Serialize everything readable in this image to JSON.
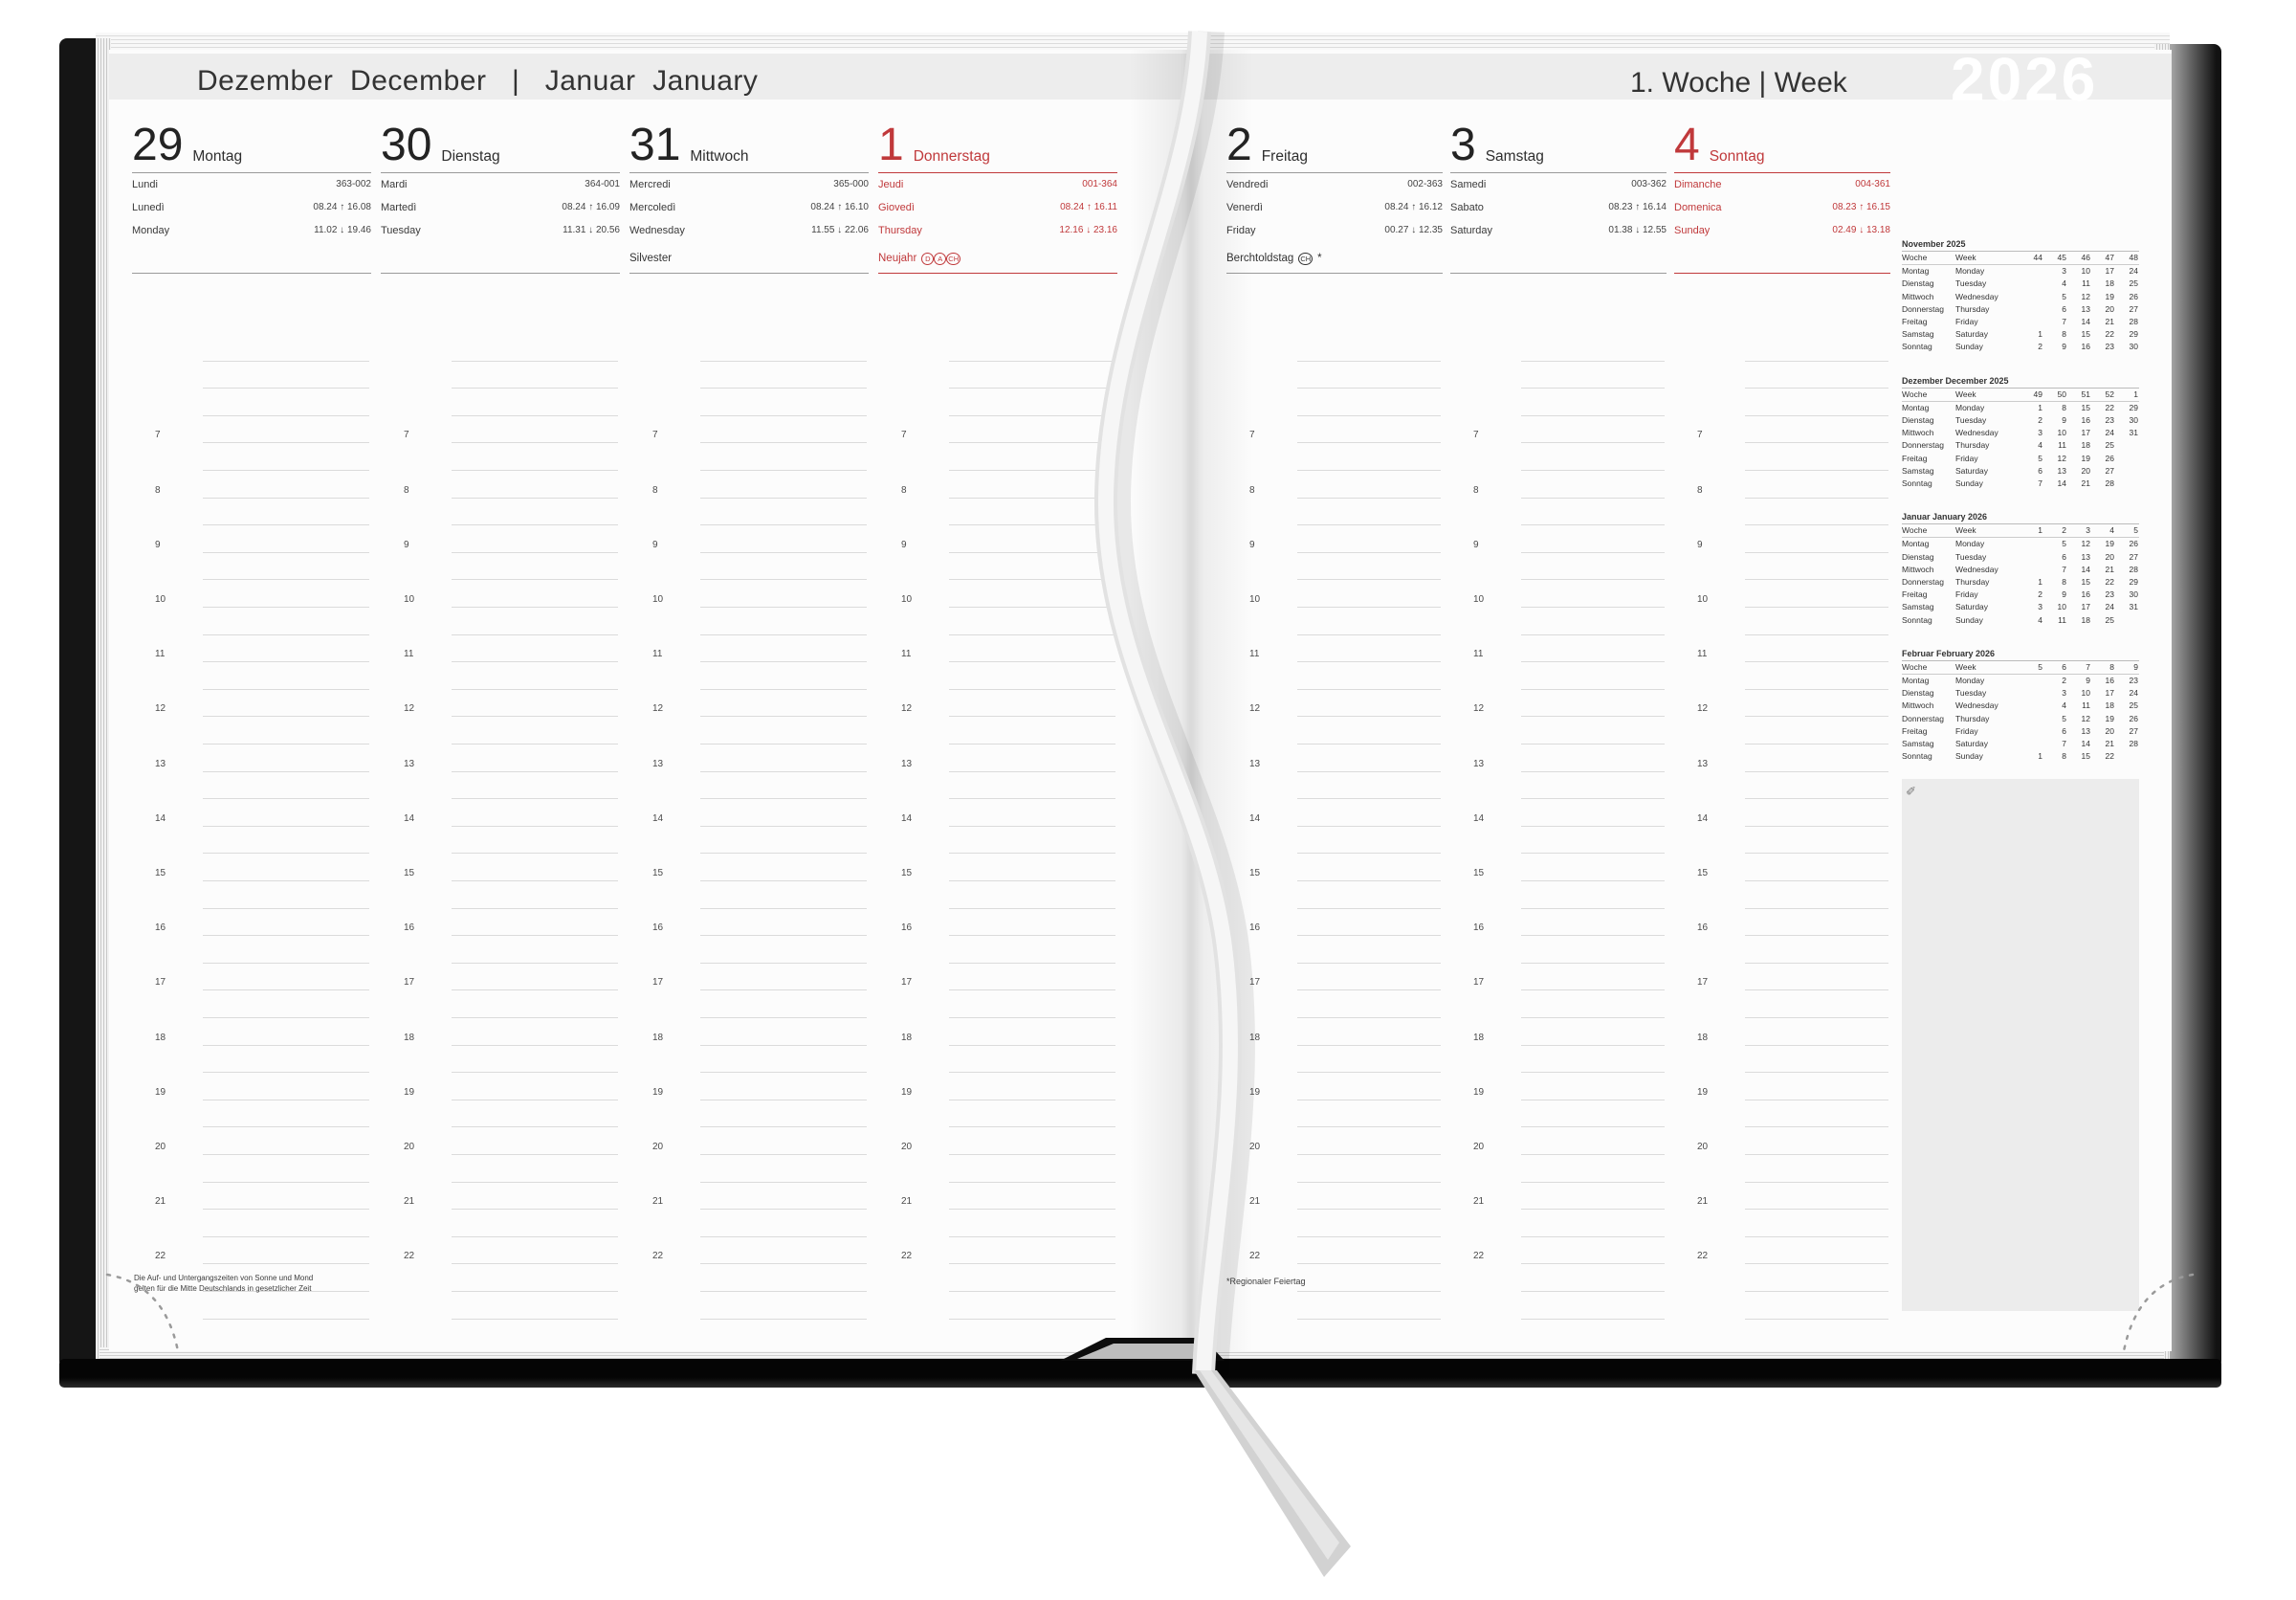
{
  "header": {
    "months": "Dezember  December   |   Januar  January",
    "week": "1. Woche | Week",
    "year": "2026"
  },
  "days": [
    {
      "num": "29",
      "name": "Montag",
      "lang1": "Lundi",
      "lang2": "Lunedì",
      "lang3": "Monday",
      "day_of_year": "363-002",
      "sun": "08.24 ↑ 16.08",
      "moon": "11.02 ↓ 19.46",
      "holiday": {
        "label": "",
        "marks": [],
        "suffix": ""
      },
      "red": false
    },
    {
      "num": "30",
      "name": "Dienstag",
      "lang1": "Mardi",
      "lang2": "Martedì",
      "lang3": "Tuesday",
      "day_of_year": "364-001",
      "sun": "08.24 ↑ 16.09",
      "moon": "11.31 ↓ 20.56",
      "holiday": {
        "label": "",
        "marks": [],
        "suffix": ""
      },
      "red": false
    },
    {
      "num": "31",
      "name": "Mittwoch",
      "lang1": "Mercredi",
      "lang2": "Mercoledì",
      "lang3": "Wednesday",
      "day_of_year": "365-000",
      "sun": "08.24 ↑ 16.10",
      "moon": "11.55 ↓ 22.06",
      "holiday": {
        "label": "Silvester",
        "marks": [],
        "suffix": ""
      },
      "red": false
    },
    {
      "num": "1",
      "name": "Donnerstag",
      "lang1": "Jeudi",
      "lang2": "Giovedì",
      "lang3": "Thursday",
      "day_of_year": "001-364",
      "sun": "08.24 ↑ 16.11",
      "moon": "12.16 ↓ 23.16",
      "holiday": {
        "label": "Neujahr",
        "marks": [
          "D",
          "A",
          "CH"
        ],
        "suffix": ""
      },
      "red": true
    },
    {
      "num": "2",
      "name": "Freitag",
      "lang1": "Vendredi",
      "lang2": "Venerdì",
      "lang3": "Friday",
      "day_of_year": "002-363",
      "sun": "08.24 ↑ 16.12",
      "moon": "00.27 ↓ 12.35",
      "holiday": {
        "label": "Berchtoldstag",
        "marks": [
          "CH"
        ],
        "suffix": "*"
      },
      "red": false
    },
    {
      "num": "3",
      "name": "Samstag",
      "lang1": "Samedi",
      "lang2": "Sabato",
      "lang3": "Saturday",
      "day_of_year": "003-362",
      "sun": "08.23 ↑ 16.14",
      "moon": "01.38 ↓ 12.55",
      "holiday": {
        "label": "",
        "marks": [],
        "suffix": ""
      },
      "red": false
    },
    {
      "num": "4",
      "name": "Sonntag",
      "lang1": "Dimanche",
      "lang2": "Domenica",
      "lang3": "Sunday",
      "day_of_year": "004-361",
      "sun": "08.23 ↑ 16.15",
      "moon": "02.49 ↓ 13.18",
      "holiday": {
        "label": "",
        "marks": [],
        "suffix": ""
      },
      "red": true
    }
  ],
  "schedule": {
    "hours": [
      "7",
      "8",
      "9",
      "10",
      "11",
      "12",
      "13",
      "14",
      "15",
      "16",
      "17",
      "18",
      "19",
      "20",
      "21",
      "22"
    ]
  },
  "mini_calendars": [
    {
      "title": "November 2025",
      "rows": [
        {
          "de": "Woche",
          "en": "Week",
          "vals": [
            "44",
            "45",
            "46",
            "47",
            "48"
          ]
        },
        {
          "de": "Montag",
          "en": "Monday",
          "vals": [
            "",
            "3",
            "10",
            "17",
            "24"
          ]
        },
        {
          "de": "Dienstag",
          "en": "Tuesday",
          "vals": [
            "",
            "4",
            "11",
            "18",
            "25"
          ]
        },
        {
          "de": "Mittwoch",
          "en": "Wednesday",
          "vals": [
            "",
            "5",
            "12",
            "19",
            "26"
          ]
        },
        {
          "de": "Donnerstag",
          "en": "Thursday",
          "vals": [
            "",
            "6",
            "13",
            "20",
            "27"
          ]
        },
        {
          "de": "Freitag",
          "en": "Friday",
          "vals": [
            "",
            "7",
            "14",
            "21",
            "28"
          ]
        },
        {
          "de": "Samstag",
          "en": "Saturday",
          "vals": [
            "1",
            "8",
            "15",
            "22",
            "29"
          ]
        },
        {
          "de": "Sonntag",
          "en": "Sunday",
          "vals": [
            "2",
            "9",
            "16",
            "23",
            "30"
          ]
        }
      ]
    },
    {
      "title": "Dezember  December 2025",
      "rows": [
        {
          "de": "Woche",
          "en": "Week",
          "vals": [
            "49",
            "50",
            "51",
            "52",
            "1"
          ]
        },
        {
          "de": "Montag",
          "en": "Monday",
          "vals": [
            "1",
            "8",
            "15",
            "22",
            "29"
          ]
        },
        {
          "de": "Dienstag",
          "en": "Tuesday",
          "vals": [
            "2",
            "9",
            "16",
            "23",
            "30"
          ]
        },
        {
          "de": "Mittwoch",
          "en": "Wednesday",
          "vals": [
            "3",
            "10",
            "17",
            "24",
            "31"
          ]
        },
        {
          "de": "Donnerstag",
          "en": "Thursday",
          "vals": [
            "4",
            "11",
            "18",
            "25",
            ""
          ]
        },
        {
          "de": "Freitag",
          "en": "Friday",
          "vals": [
            "5",
            "12",
            "19",
            "26",
            ""
          ]
        },
        {
          "de": "Samstag",
          "en": "Saturday",
          "vals": [
            "6",
            "13",
            "20",
            "27",
            ""
          ]
        },
        {
          "de": "Sonntag",
          "en": "Sunday",
          "vals": [
            "7",
            "14",
            "21",
            "28",
            ""
          ]
        }
      ]
    },
    {
      "title": "Januar  January 2026",
      "rows": [
        {
          "de": "Woche",
          "en": "Week",
          "vals": [
            "1",
            "2",
            "3",
            "4",
            "5"
          ]
        },
        {
          "de": "Montag",
          "en": "Monday",
          "vals": [
            "",
            "5",
            "12",
            "19",
            "26"
          ]
        },
        {
          "de": "Dienstag",
          "en": "Tuesday",
          "vals": [
            "",
            "6",
            "13",
            "20",
            "27"
          ]
        },
        {
          "de": "Mittwoch",
          "en": "Wednesday",
          "vals": [
            "",
            "7",
            "14",
            "21",
            "28"
          ]
        },
        {
          "de": "Donnerstag",
          "en": "Thursday",
          "vals": [
            "1",
            "8",
            "15",
            "22",
            "29"
          ]
        },
        {
          "de": "Freitag",
          "en": "Friday",
          "vals": [
            "2",
            "9",
            "16",
            "23",
            "30"
          ]
        },
        {
          "de": "Samstag",
          "en": "Saturday",
          "vals": [
            "3",
            "10",
            "17",
            "24",
            "31"
          ]
        },
        {
          "de": "Sonntag",
          "en": "Sunday",
          "vals": [
            "4",
            "11",
            "18",
            "25",
            ""
          ]
        }
      ]
    },
    {
      "title": "Februar  February 2026",
      "rows": [
        {
          "de": "Woche",
          "en": "Week",
          "vals": [
            "5",
            "6",
            "7",
            "8",
            "9"
          ]
        },
        {
          "de": "Montag",
          "en": "Monday",
          "vals": [
            "",
            "2",
            "9",
            "16",
            "23"
          ]
        },
        {
          "de": "Dienstag",
          "en": "Tuesday",
          "vals": [
            "",
            "3",
            "10",
            "17",
            "24"
          ]
        },
        {
          "de": "Mittwoch",
          "en": "Wednesday",
          "vals": [
            "",
            "4",
            "11",
            "18",
            "25"
          ]
        },
        {
          "de": "Donnerstag",
          "en": "Thursday",
          "vals": [
            "",
            "5",
            "12",
            "19",
            "26"
          ]
        },
        {
          "de": "Freitag",
          "en": "Friday",
          "vals": [
            "",
            "6",
            "13",
            "20",
            "27"
          ]
        },
        {
          "de": "Samstag",
          "en": "Saturday",
          "vals": [
            "",
            "7",
            "14",
            "21",
            "28"
          ]
        },
        {
          "de": "Sonntag",
          "en": "Sunday",
          "vals": [
            "1",
            "8",
            "15",
            "22",
            ""
          ]
        }
      ]
    }
  ],
  "notes": {
    "pencil_icon": "✎"
  },
  "footnotes": {
    "left_line1": "Die Auf- und Untergangszeiten von Sonne und Mond",
    "left_line2": "gelten für die Mitte Deutschlands in gesetzlicher Zeit",
    "right": "*Regionaler Feiertag"
  },
  "colors": {
    "accent_red": "#c0393b",
    "band_gray": "#ededed",
    "cover_black": "#151515"
  }
}
